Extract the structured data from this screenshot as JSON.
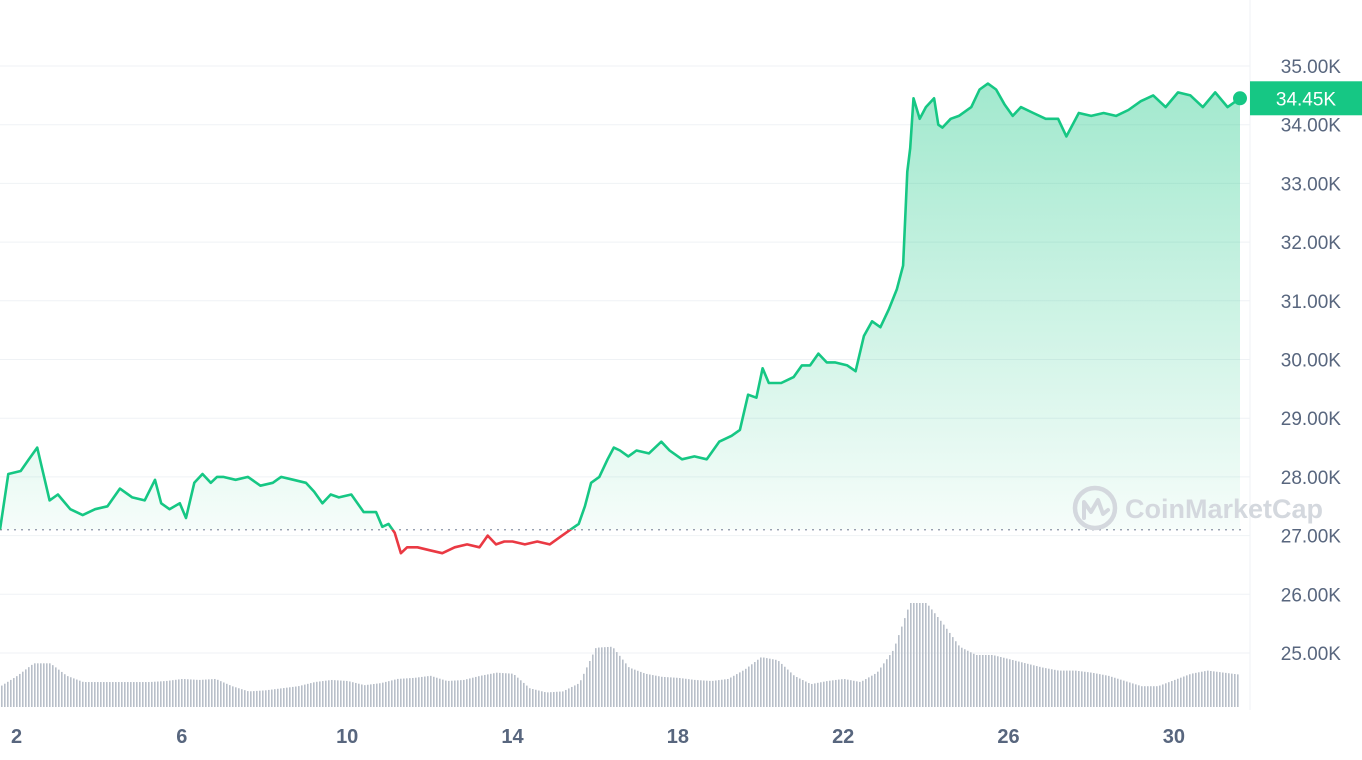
{
  "chart_data": {
    "type": "area",
    "xlabel": "",
    "ylabel": "",
    "x_ticks": [
      "2",
      "6",
      "10",
      "14",
      "18",
      "22",
      "26",
      "30"
    ],
    "x_tick_days": [
      2,
      6,
      10,
      14,
      18,
      22,
      26,
      30
    ],
    "xlim": [
      1.6,
      31.6
    ],
    "y_ticks": [
      "35.00K",
      "34.00K",
      "33.00K",
      "32.00K",
      "31.00K",
      "30.00K",
      "29.00K",
      "28.00K",
      "27.00K",
      "26.00K",
      "25.00K"
    ],
    "y_tick_values": [
      35000,
      34000,
      33000,
      32000,
      31000,
      30000,
      29000,
      28000,
      27000,
      26000,
      25000
    ],
    "ylim": [
      24300,
      35500
    ],
    "baseline": 27100,
    "current_price": 34450,
    "current_label": "34.45K",
    "grid": true,
    "colors": {
      "up": "#16c784",
      "down": "#ea3943",
      "grid": "#eff2f5",
      "volume": "#b8bfc9",
      "text": "#58667e"
    },
    "series": [
      {
        "x": [
          1.6,
          1.8,
          2.1,
          2.3,
          2.5,
          2.65,
          2.8,
          3.0,
          3.3,
          3.6,
          3.9,
          4.2,
          4.5,
          4.8,
          5.1,
          5.35,
          5.5,
          5.7,
          5.95,
          6.1,
          6.3,
          6.5,
          6.7,
          6.85,
          7.0,
          7.3,
          7.6,
          7.9,
          8.2,
          8.4,
          8.7,
          9.0,
          9.2,
          9.4,
          9.6,
          9.8,
          10.1,
          10.4,
          10.7,
          10.85,
          11.0,
          11.15,
          11.3,
          11.45,
          11.7,
          12.0,
          12.3,
          12.6,
          12.9,
          13.2,
          13.4,
          13.6,
          13.8,
          14.0,
          14.3,
          14.6,
          14.9,
          15.2,
          15.4,
          15.6,
          15.75,
          15.9,
          16.1,
          16.3,
          16.45,
          16.6,
          16.8,
          17.0,
          17.3,
          17.6,
          17.8,
          18.1,
          18.4,
          18.7,
          19.0,
          19.3,
          19.5,
          19.7,
          19.9,
          20.05,
          20.2,
          20.5,
          20.8,
          21.0,
          21.2,
          21.4,
          21.6,
          21.8,
          22.1,
          22.3,
          22.5,
          22.7,
          22.9,
          23.1,
          23.3,
          23.45,
          23.55,
          23.62,
          23.7,
          23.85,
          24.0,
          24.2,
          24.3,
          24.4,
          24.6,
          24.8,
          25.1,
          25.3,
          25.5,
          25.7,
          25.9,
          26.1,
          26.3,
          26.6,
          26.9,
          27.2,
          27.4,
          27.7,
          28.0,
          28.3,
          28.6,
          28.9,
          29.2,
          29.5,
          29.8,
          30.1,
          30.4,
          30.7,
          31.0,
          31.3,
          31.6
        ],
        "y": [
          27100,
          28050,
          28100,
          28300,
          28500,
          28050,
          27600,
          27700,
          27450,
          27350,
          27450,
          27500,
          27800,
          27650,
          27600,
          27950,
          27550,
          27450,
          27550,
          27300,
          27900,
          28050,
          27900,
          28000,
          28000,
          27950,
          28000,
          27850,
          27900,
          28000,
          27950,
          27900,
          27750,
          27550,
          27700,
          27650,
          27700,
          27400,
          27400,
          27150,
          27200,
          27050,
          26700,
          26800,
          26800,
          26750,
          26700,
          26800,
          26850,
          26800,
          27000,
          26850,
          26900,
          26900,
          26850,
          26900,
          26850,
          27000,
          27100,
          27200,
          27500,
          27900,
          28000,
          28300,
          28500,
          28450,
          28350,
          28450,
          28400,
          28600,
          28450,
          28300,
          28350,
          28300,
          28600,
          28700,
          28800,
          29400,
          29350,
          29850,
          29600,
          29600,
          29700,
          29900,
          29900,
          30100,
          29950,
          29950,
          29900,
          29800,
          30400,
          30650,
          30550,
          30850,
          31200,
          31600,
          33200,
          33600,
          34450,
          34100,
          34300,
          34450,
          34000,
          33950,
          34100,
          34150,
          34300,
          34600,
          34700,
          34600,
          34350,
          34150,
          34300,
          34200,
          34100,
          34100,
          33800,
          34200,
          34150,
          34200,
          34150,
          34250,
          34400,
          34500,
          34300,
          34550,
          34500,
          34300,
          34550,
          34300,
          34450
        ]
      }
    ],
    "volume": {
      "x": [
        1.6,
        2.0,
        2.4,
        2.8,
        3.2,
        3.6,
        4.0,
        4.4,
        4.8,
        5.2,
        5.6,
        6.0,
        6.4,
        6.8,
        7.2,
        7.6,
        8.0,
        8.4,
        8.8,
        9.2,
        9.6,
        10.0,
        10.4,
        10.8,
        11.2,
        11.6,
        12.0,
        12.4,
        12.8,
        13.2,
        13.6,
        14.0,
        14.4,
        14.8,
        15.2,
        15.6,
        16.0,
        16.4,
        16.8,
        17.2,
        17.6,
        18.0,
        18.4,
        18.8,
        19.2,
        19.6,
        20.0,
        20.4,
        20.8,
        21.2,
        21.6,
        22.0,
        22.4,
        22.8,
        23.2,
        23.6,
        24.0,
        24.4,
        24.8,
        25.2,
        25.6,
        26.0,
        26.4,
        26.8,
        27.2,
        27.6,
        28.0,
        28.4,
        28.8,
        29.2,
        29.6,
        30.0,
        30.4,
        30.8,
        31.2,
        31.6
      ],
      "y": [
        0.2,
        0.3,
        0.42,
        0.42,
        0.3,
        0.24,
        0.24,
        0.24,
        0.24,
        0.24,
        0.25,
        0.27,
        0.26,
        0.27,
        0.2,
        0.15,
        0.16,
        0.18,
        0.2,
        0.24,
        0.26,
        0.25,
        0.21,
        0.23,
        0.27,
        0.28,
        0.3,
        0.25,
        0.26,
        0.3,
        0.33,
        0.32,
        0.18,
        0.14,
        0.15,
        0.23,
        0.57,
        0.58,
        0.38,
        0.32,
        0.29,
        0.28,
        0.26,
        0.25,
        0.27,
        0.36,
        0.48,
        0.45,
        0.3,
        0.22,
        0.25,
        0.27,
        0.24,
        0.33,
        0.55,
        1.0,
        1.0,
        0.8,
        0.58,
        0.5,
        0.5,
        0.46,
        0.42,
        0.38,
        0.35,
        0.35,
        0.33,
        0.3,
        0.25,
        0.2,
        0.2,
        0.26,
        0.32,
        0.35,
        0.33,
        0.31
      ]
    }
  },
  "watermark": {
    "text": "CoinMarketCap"
  }
}
